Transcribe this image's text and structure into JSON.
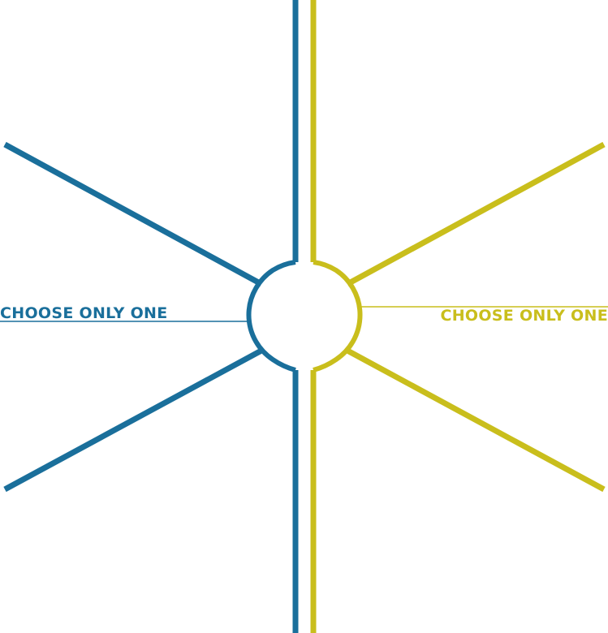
{
  "colors": {
    "left_accent": "#1a6f9b",
    "right_accent": "#c9be1c",
    "background": "#ffffff"
  },
  "left_option": {
    "label": "CHOOSE ONLY ONE"
  },
  "right_option": {
    "label": "CHOOSE ONLY ONE"
  }
}
